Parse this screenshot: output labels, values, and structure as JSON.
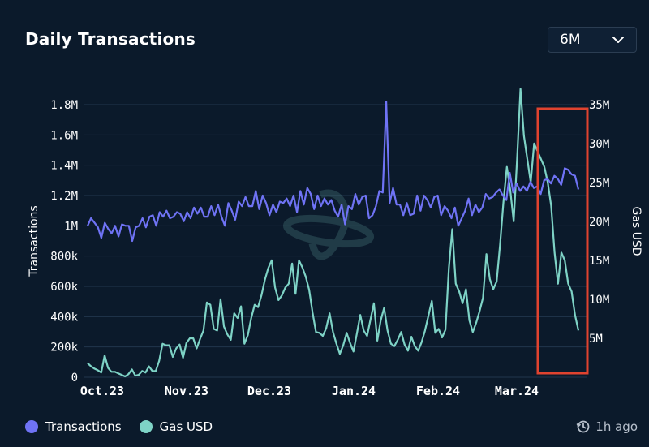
{
  "header": {
    "title": "Daily Transactions",
    "range_value": "6M"
  },
  "footer": {
    "updated": "1h ago"
  },
  "colors": {
    "transactions": "#6f73f5",
    "gas": "#7ed3c6",
    "highlight": "#e0432f",
    "grid": "#22364c"
  },
  "chart_data": {
    "type": "line",
    "title": "Daily Transactions",
    "x_ticks": [
      "Oct.23",
      "Nov.23",
      "Dec.23",
      "Jan.24",
      "Feb.24",
      "Mar.24"
    ],
    "y_left": {
      "label": "Transactions",
      "ticks": [
        "0",
        "200k",
        "400k",
        "600k",
        "800k",
        "1M",
        "1.2M",
        "1.4M",
        "1.6M",
        "1.8M"
      ],
      "ylim": [
        0,
        1800000
      ]
    },
    "y_right": {
      "label": "Gas USD",
      "ticks": [
        "5M",
        "10M",
        "15M",
        "20M",
        "25M",
        "30M",
        "35M"
      ],
      "ylim": [
        0,
        35000000
      ]
    },
    "grid": true,
    "legend_position": "bottom-left",
    "series": [
      {
        "name": "Transactions",
        "axis": "left",
        "values": [
          1000000,
          1050000,
          1020000,
          990000,
          920000,
          1020000,
          980000,
          950000,
          1000000,
          930000,
          1010000,
          1000000,
          1000000,
          900000,
          990000,
          1000000,
          1050000,
          990000,
          1060000,
          1070000,
          1000000,
          1090000,
          1060000,
          1100000,
          1050000,
          1060000,
          1090000,
          1080000,
          1030000,
          1090000,
          1050000,
          1120000,
          1080000,
          1120000,
          1060000,
          1060000,
          1130000,
          1070000,
          1140000,
          1060000,
          1000000,
          1150000,
          1100000,
          1040000,
          1160000,
          1130000,
          1190000,
          1130000,
          1130000,
          1230000,
          1110000,
          1200000,
          1150000,
          1070000,
          1140000,
          1090000,
          1160000,
          1150000,
          1180000,
          1130000,
          1200000,
          1090000,
          1230000,
          1140000,
          1250000,
          1210000,
          1110000,
          1200000,
          1130000,
          1180000,
          1140000,
          1170000,
          1100000,
          1060000,
          1140000,
          1010000,
          1130000,
          1110000,
          1210000,
          1140000,
          1190000,
          1200000,
          1050000,
          1070000,
          1130000,
          1230000,
          1220000,
          1820000,
          1150000,
          1250000,
          1140000,
          1140000,
          1070000,
          1150000,
          1070000,
          1080000,
          1200000,
          1100000,
          1200000,
          1170000,
          1120000,
          1190000,
          1200000,
          1070000,
          1130000,
          1100000,
          1050000,
          1120000,
          1000000,
          1050000,
          1100000,
          1180000,
          1070000,
          1140000,
          1090000,
          1120000,
          1210000,
          1180000,
          1190000,
          1220000,
          1240000,
          1200000,
          1170000,
          1350000,
          1220000,
          1280000,
          1230000,
          1260000,
          1230000,
          1290000,
          1250000,
          1260000,
          1210000,
          1300000,
          1310000,
          1280000,
          1330000,
          1310000,
          1270000,
          1380000,
          1370000,
          1340000,
          1330000,
          1240000
        ]
      },
      {
        "name": "Gas USD",
        "axis": "right",
        "values": [
          1800000,
          1400000,
          1100000,
          900000,
          600000,
          2800000,
          1200000,
          700000,
          700000,
          500000,
          300000,
          100000,
          400000,
          1000000,
          200000,
          300000,
          800000,
          600000,
          1400000,
          800000,
          800000,
          2100000,
          4300000,
          4100000,
          4100000,
          2600000,
          3700000,
          4200000,
          2500000,
          4400000,
          5000000,
          5000000,
          3700000,
          4900000,
          6000000,
          9600000,
          9300000,
          6200000,
          6000000,
          10000000,
          6500000,
          5500000,
          4800000,
          8200000,
          7600000,
          9100000,
          4300000,
          5400000,
          7600000,
          9300000,
          9000000,
          10500000,
          12500000,
          14000000,
          15000000,
          11500000,
          9900000,
          10500000,
          11500000,
          12000000,
          14600000,
          10700000,
          15000000,
          14100000,
          12900000,
          11200000,
          8300000,
          5800000,
          5700000,
          5300000,
          6300000,
          8200000,
          5800000,
          4300000,
          3000000,
          4100000,
          5700000,
          4400000,
          3300000,
          5600000,
          8000000,
          6000000,
          5300000,
          7400000,
          9500000,
          4700000,
          7300000,
          8900000,
          6000000,
          4300000,
          4000000,
          4800000,
          5800000,
          4200000,
          3400000,
          5200000,
          4000000,
          3400000,
          4500000,
          6000000,
          7900000,
          9800000,
          5700000,
          6200000,
          5100000,
          6100000,
          14000000,
          19000000,
          12000000,
          11000000,
          9500000,
          11300000,
          7300000,
          5800000,
          7000000,
          8500000,
          10200000,
          15800000,
          12600000,
          11300000,
          12300000,
          17000000,
          22500000,
          27000000,
          24000000,
          20000000,
          28000000,
          37000000,
          31000000,
          28000000,
          25000000,
          30000000,
          29000000,
          28000000,
          27000000,
          25000000,
          22000000,
          16000000,
          12000000,
          16000000,
          15000000,
          12000000,
          11000000,
          8000000,
          6000000
        ]
      }
    ],
    "highlight_box": {
      "x_range": [
        "Mar.24",
        "end"
      ]
    }
  }
}
